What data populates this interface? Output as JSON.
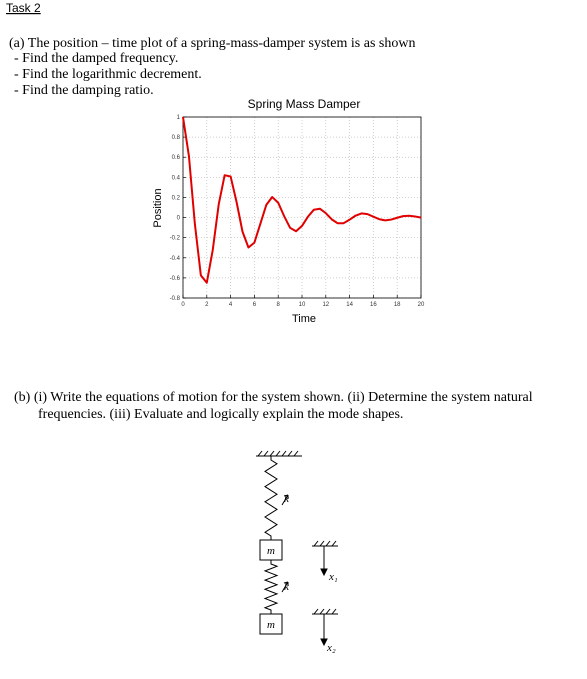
{
  "task": "Task 2",
  "part_a": {
    "question": "(a) The position – time plot of a spring-mass-damper system is as shown",
    "items": [
      "- Find the damped frequency.",
      "- Find the logarithmic decrement.",
      "- Find the damping ratio."
    ]
  },
  "chart_data": {
    "type": "line",
    "title": "Spring Mass Damper",
    "xlabel": "Time",
    "ylabel": "Position",
    "color": "#e00000",
    "grid": true,
    "xlim": [
      0,
      20
    ],
    "ylim": [
      -0.8,
      1
    ],
    "xticks": [
      0,
      2,
      4,
      6,
      8,
      10,
      12,
      14,
      16,
      18,
      20
    ],
    "yticks": [
      -0.8,
      -0.6,
      -0.4,
      -0.2,
      0,
      0.2,
      0.4,
      0.6,
      0.8,
      1
    ],
    "x": [
      0,
      0.5,
      1,
      1.5,
      2,
      2.5,
      3,
      3.5,
      4,
      4.5,
      5,
      5.5,
      6,
      6.5,
      7,
      7.5,
      8,
      8.5,
      9,
      9.5,
      10,
      10.5,
      11,
      11.5,
      12,
      12.5,
      13,
      13.5,
      14,
      14.5,
      15,
      15.5,
      16,
      16.5,
      17,
      17.5,
      18,
      18.5,
      19,
      19.5,
      20
    ],
    "values": [
      1,
      0.609,
      -0.067,
      -0.575,
      -0.648,
      -0.323,
      0.13,
      0.421,
      0.409,
      0.156,
      -0.14,
      -0.298,
      -0.249,
      -0.062,
      0.126,
      0.204,
      0.147,
      0.014,
      -0.102,
      -0.136,
      -0.083,
      0.009,
      0.078,
      0.088,
      0.044,
      -0.018,
      -0.057,
      -0.056,
      -0.021,
      0.019,
      0.041,
      0.034,
      0.009,
      -0.017,
      -0.028,
      -0.02,
      -0.002,
      0.014,
      0.018,
      0.011,
      -0.001
    ]
  },
  "part_b": {
    "lines": [
      "(b) (i) Write the equations of motion for the system shown. (ii) Determine the system natural",
      "frequencies. (iii) Evaluate and logically explain the mode shapes."
    ]
  },
  "diagram": {
    "spring_1": "k",
    "mass_1": "m",
    "displacement_1": "x₁",
    "spring_2": "k",
    "mass_2": "m",
    "displacement_2": "x₂"
  }
}
